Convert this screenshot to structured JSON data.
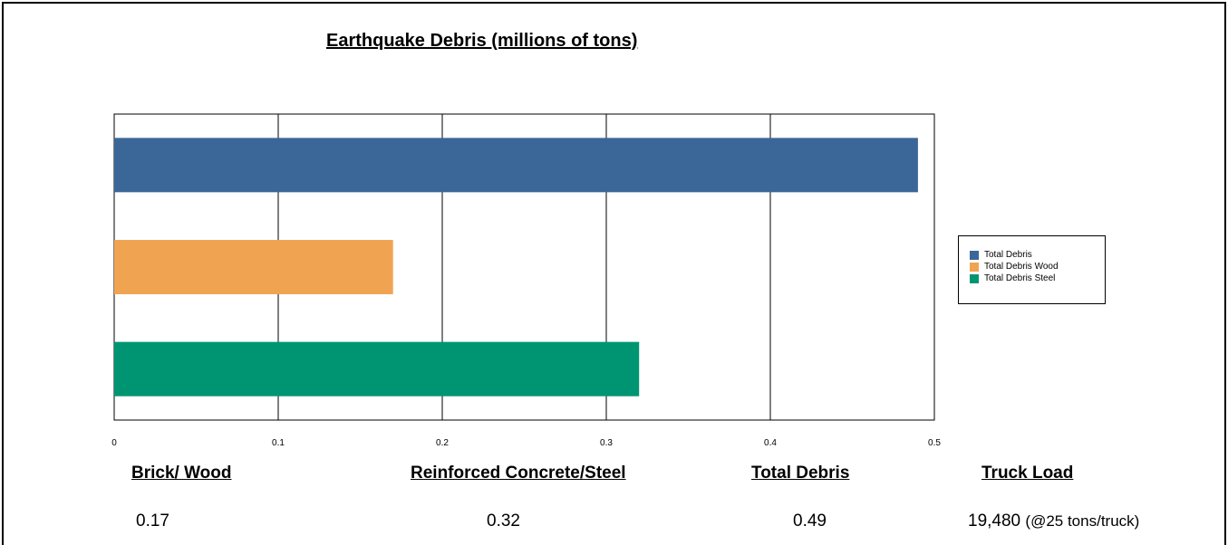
{
  "chart_data": {
    "type": "bar",
    "orientation": "horizontal",
    "title": "Earthquake Debris (millions of tons)",
    "xlabel": "",
    "ylabel": "",
    "xlim": [
      0,
      0.5
    ],
    "x_ticks": [
      "0",
      "0.1",
      "0.2",
      "0.3",
      "0.4",
      "0.5"
    ],
    "grid": true,
    "legend_position": "right",
    "series": [
      {
        "name": "Total Debris",
        "value": 0.49,
        "color": "#3b6698"
      },
      {
        "name": "Total Debris Wood",
        "value": 0.17,
        "color": "#f0a452"
      },
      {
        "name": "Total Debris Steel",
        "value": 0.32,
        "color": "#009572"
      }
    ]
  },
  "summary": {
    "brick_wood": {
      "label": "Brick/ Wood",
      "value": "0.17"
    },
    "concrete_steel": {
      "label": "Reinforced Concrete/Steel",
      "value": "0.32"
    },
    "total": {
      "label": "Total  Debris",
      "value": "0.49"
    },
    "truck": {
      "label": "Truck Load",
      "value": "19,480",
      "note": "(@25 tons/truck)"
    }
  }
}
